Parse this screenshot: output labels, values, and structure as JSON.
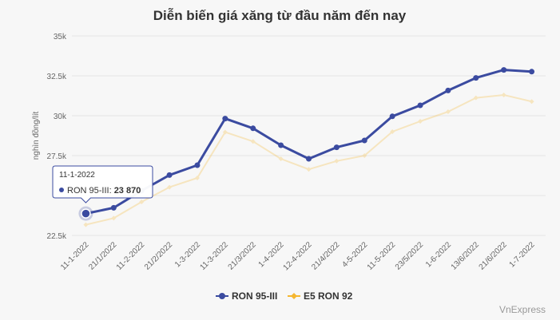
{
  "chart_data": {
    "type": "line",
    "title": "Diễn biến giá xăng từ đầu năm đến nay",
    "ylabel": "nghìn đồng/lít",
    "xlabel": "",
    "ylim": [
      22500,
      35000
    ],
    "y_ticks": [
      22500,
      25000,
      27500,
      30000,
      32500,
      35000
    ],
    "y_tick_labels": [
      "22.5k",
      "",
      "27.5k",
      "30k",
      "32.5k",
      "35k"
    ],
    "grid": true,
    "legend_position": "bottom",
    "categories": [
      "11-1-2022",
      "21/1/2022",
      "11-2-2022",
      "21/2/2022",
      "1-3-2022",
      "11-3-2022",
      "21/3/2022",
      "1-4-2022",
      "12-4-2022",
      "21/4/2022",
      "4-5-2022",
      "11-5-2022",
      "23/5/2022",
      "1-6-2022",
      "13/6/2022",
      "21/6/2022",
      "1-7-2022"
    ],
    "series": [
      {
        "name": "RON 95-III",
        "color": "#3b4ba0",
        "values": [
          23870,
          24230,
          25300,
          26280,
          26900,
          29820,
          29210,
          28150,
          27300,
          28020,
          28450,
          29960,
          30650,
          31580,
          32370,
          32870,
          32760
        ]
      },
      {
        "name": "E5 RON 92",
        "color": "#f5b731",
        "values": [
          23170,
          23580,
          24600,
          25520,
          26100,
          28970,
          28390,
          27300,
          26640,
          27160,
          27500,
          29000,
          29650,
          30250,
          31120,
          31300,
          30890
        ]
      }
    ]
  },
  "tooltip": {
    "date": "11-1-2022",
    "series_label": "RON 95-III: ",
    "value": "23 870"
  },
  "credits": "VnExpress"
}
